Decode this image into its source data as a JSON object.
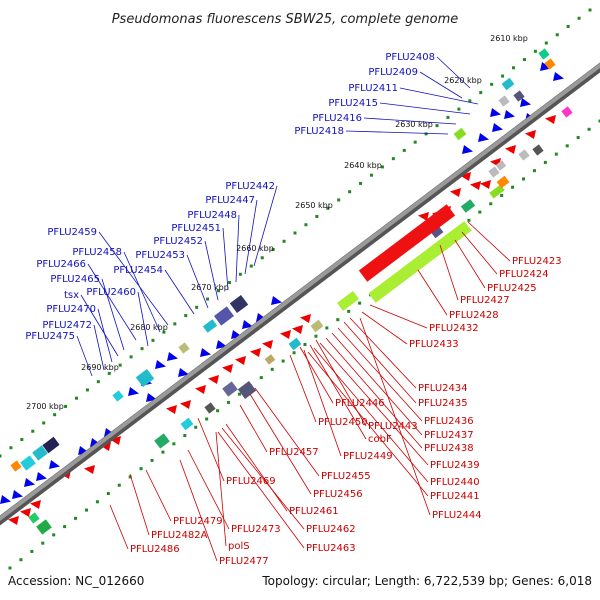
{
  "title": "Pseudomonas fluorescens SBW25, complete genome",
  "footer": {
    "accession": "Accession: NC_012660",
    "summary": "Topology: circular; Length: 6,722,539 bp; Genes: 6,018"
  },
  "colors": {
    "forward_genes": "#0000ee",
    "reverse_genes": "#ee0000",
    "backbone": "#8a8a8a",
    "ticks": "#228822",
    "forward_labels": "#1010c0",
    "reverse_labels": "#cc0000"
  },
  "ruler": [
    "2610 kbp",
    "2620 kbp",
    "2630 kbp",
    "2640 kbp",
    "2650 kbp",
    "2660 kbp",
    "2670 kbp",
    "2680 kbp",
    "2690 kbp",
    "2700 kbp"
  ],
  "forward_genes": [
    "PFLU2408",
    "PFLU2409",
    "PFLU2411",
    "PFLU2415",
    "PFLU2416",
    "PFLU2418",
    "PFLU2442",
    "PFLU2447",
    "PFLU2448",
    "PFLU2451",
    "PFLU2452",
    "PFLU2453",
    "PFLU2459",
    "PFLU2458",
    "PFLU2466",
    "PFLU2454",
    "PFLU2465",
    "PFLU2460",
    "tsx",
    "PFLU2470",
    "PFLU2472",
    "PFLU2475"
  ],
  "reverse_genes": [
    "PFLU2423",
    "PFLU2424",
    "PFLU2425",
    "PFLU2427",
    "PFLU2428",
    "PFLU2432",
    "PFLU2433",
    "PFLU2434",
    "PFLU2435",
    "PFLU2446",
    "PFLU2436",
    "PFLU2443",
    "PFLU2437",
    "PFLU2450",
    "cobF",
    "PFLU2438",
    "PFLU2449",
    "PFLU2439",
    "PFLU2457",
    "PFLU2440",
    "PFLU2455",
    "PFLU2441",
    "PFLU2469",
    "PFLU2456",
    "PFLU2444",
    "PFLU2461",
    "PFLU2462",
    "PFLU2479",
    "PFLU2473",
    "PFLU2482A",
    "polS",
    "PFLU2463",
    "PFLU2486",
    "PFLU2477"
  ]
}
